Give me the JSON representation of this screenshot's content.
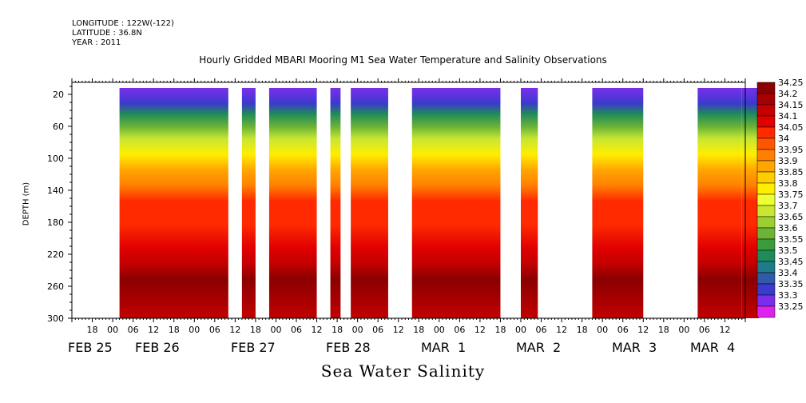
{
  "header": {
    "longitude": "LONGITUDE : 122W(-122)",
    "latitude": "LATITUDE : 36.8N",
    "year": "YEAR : 2011"
  },
  "chart_data": {
    "type": "heatmap",
    "title": "Hourly Gridded MBARI Mooring M1 Sea Water Temperature and Salinity Observations",
    "variable_title": "Sea Water Salinity",
    "ylabel": "DEPTH (m)",
    "y_ticks": [
      20,
      60,
      100,
      140,
      180,
      220,
      260,
      300
    ],
    "ylim": [
      5,
      300
    ],
    "y_inverted": true,
    "x_hour_ticks": [
      "18",
      "00",
      "06",
      "12",
      "18",
      "00",
      "06",
      "12",
      "18",
      "00",
      "06",
      "12",
      "18",
      "00",
      "06",
      "12",
      "18",
      "00",
      "06",
      "12",
      "18",
      "00",
      "06",
      "12",
      "18",
      "00",
      "06",
      "12",
      "18",
      "00",
      "06",
      "12"
    ],
    "x_day_labels": [
      "FEB 25",
      "FEB 26",
      "FEB 27",
      "FEB 28",
      "MAR  1",
      "MAR  2",
      "MAR  3",
      "MAR  4"
    ],
    "data_segments_hours": [
      [
        14,
        46
      ],
      [
        50,
        54
      ],
      [
        58,
        72
      ],
      [
        76,
        79
      ],
      [
        82,
        93
      ],
      [
        100,
        126
      ],
      [
        132,
        137
      ],
      [
        153,
        168
      ],
      [
        184,
        197
      ],
      [
        197,
        202
      ]
    ],
    "profile": [
      {
        "depth": 5,
        "salinity": 33.3
      },
      {
        "depth": 25,
        "salinity": 33.35
      },
      {
        "depth": 38,
        "salinity": 33.5
      },
      {
        "depth": 55,
        "salinity": 33.6
      },
      {
        "depth": 70,
        "salinity": 33.7
      },
      {
        "depth": 90,
        "salinity": 33.8
      },
      {
        "depth": 110,
        "salinity": 33.9
      },
      {
        "depth": 130,
        "salinity": 33.95
      },
      {
        "depth": 150,
        "salinity": 34.05
      },
      {
        "depth": 180,
        "salinity": 34.05
      },
      {
        "depth": 210,
        "salinity": 34.1
      },
      {
        "depth": 230,
        "salinity": 34.15
      },
      {
        "depth": 250,
        "salinity": 34.25
      },
      {
        "depth": 275,
        "salinity": 34.2
      },
      {
        "depth": 300,
        "salinity": 34.15
      }
    ],
    "levels": [
      34.25,
      34.2,
      34.15,
      34.1,
      34.05,
      34,
      33.95,
      33.9,
      33.85,
      33.8,
      33.75,
      33.7,
      33.65,
      33.6,
      33.55,
      33.5,
      33.45,
      33.4,
      33.35,
      33.3,
      33.25
    ],
    "level_labels": [
      "34.25",
      "34.2",
      "34.15",
      "34.1",
      "34.05",
      "34",
      "33.95",
      "33.9",
      "33.85",
      "33.8",
      "33.75",
      "33.7",
      "33.65",
      "33.6",
      "33.55",
      "33.5",
      "33.45",
      "33.4",
      "33.35",
      "33.3",
      "33.25"
    ],
    "level_colors": [
      "#8b0000",
      "#a60000",
      "#c40000",
      "#e00000",
      "#ff2a00",
      "#ff5500",
      "#ff8000",
      "#ffa500",
      "#ffcc00",
      "#ffee00",
      "#eeff33",
      "#c8e632",
      "#9ccd32",
      "#6cb436",
      "#3a9c3a",
      "#1f8a5a",
      "#1f7a8a",
      "#2e5aa8",
      "#3a3acc",
      "#7a2eea",
      "#dd22ee"
    ],
    "colorbar_placement": "right",
    "grid": false
  }
}
